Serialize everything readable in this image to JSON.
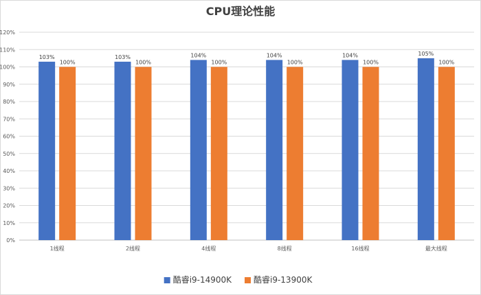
{
  "chart_data": {
    "type": "bar",
    "title": "CPU理论性能",
    "categories": [
      "1线程",
      "2线程",
      "4线程",
      "8线程",
      "16线程",
      "最大线程"
    ],
    "series": [
      {
        "name": "酷睿i9-14900K",
        "values": [
          103,
          103,
          104,
          104,
          104,
          105
        ],
        "labels": [
          "103%",
          "103%",
          "104%",
          "104%",
          "104%",
          "105%"
        ],
        "color": "#4472C4"
      },
      {
        "name": "酷睿i9-13900K",
        "values": [
          100,
          100,
          100,
          100,
          100,
          100
        ],
        "labels": [
          "100%",
          "100%",
          "100%",
          "100%",
          "100%",
          "100%"
        ],
        "color": "#ED7D31"
      }
    ],
    "yticks": [
      "0%",
      "10%",
      "20%",
      "30%",
      "40%",
      "50%",
      "60%",
      "70%",
      "80%",
      "90%",
      "100%",
      "110%",
      "120%"
    ],
    "ylim": [
      0,
      120
    ],
    "xlabel": "",
    "ylabel": "",
    "grid": true,
    "legend_position": "bottom"
  }
}
